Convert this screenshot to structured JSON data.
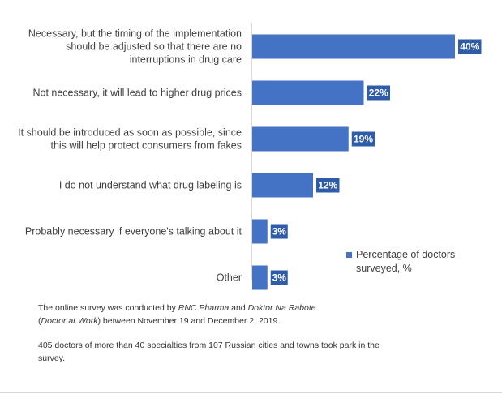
{
  "chart_data": {
    "type": "bar",
    "orientation": "horizontal",
    "categories": [
      [
        "Necessary, but the timing of the implementation",
        "should be adjusted so that there are no",
        "interruptions in drug care"
      ],
      [
        "Not necessary, it will lead to higher drug prices"
      ],
      [
        "It should be introduced as soon as possible, since",
        "this will help protect consumers from fakes"
      ],
      [
        "I do not understand what drug labeling is"
      ],
      [
        "Probably necessary if everyone's talking about it"
      ],
      [
        "Other"
      ]
    ],
    "series": [
      {
        "name": "Percentage of doctors surveyed, %",
        "values": [
          40,
          22,
          19,
          12,
          3,
          3
        ]
      }
    ],
    "value_labels": [
      "40%",
      "22%",
      "19%",
      "12%",
      "3%",
      "3%"
    ],
    "xlim": [
      0,
      40
    ],
    "grid": false,
    "legend_position": "lower-right",
    "color": "#4472C4"
  },
  "legend": {
    "label": "Percentage of doctors surveyed, %"
  },
  "notes": {
    "line1_a": "The online survey was conducted by ",
    "line1_b": "RNC Pharma",
    "line1_c": " and ",
    "line1_d": "Doktor Na Rabote",
    "line1_e": "(",
    "line1_f": "Doctor at Work",
    "line1_g": ") between November 19 and December 2, 2019.",
    "line2": "405 doctors of more than 40 specialties from 107 Russian cities and towns took park in the survey."
  }
}
